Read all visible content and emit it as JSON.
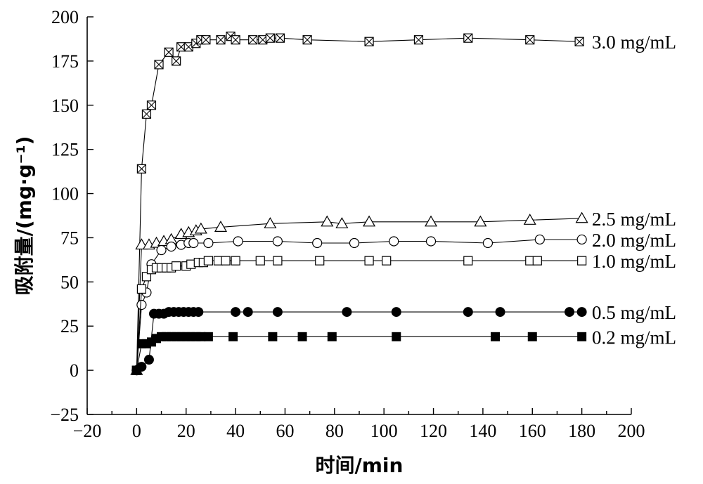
{
  "chart_data": {
    "type": "line",
    "xlabel": "时间/min",
    "ylabel": "吸附量/(mg·g⁻¹)",
    "xlim": [
      -20,
      200
    ],
    "ylim": [
      -25,
      200
    ],
    "xticks": [
      -20,
      0,
      20,
      40,
      60,
      80,
      100,
      120,
      140,
      160,
      180,
      200
    ],
    "xtick_labels": [
      "−20",
      "0",
      "20",
      "40",
      "60",
      "80",
      "100",
      "120",
      "140",
      "160",
      "180",
      "200"
    ],
    "yticks": [
      -25,
      0,
      25,
      50,
      75,
      100,
      125,
      150,
      175,
      200
    ],
    "ytick_labels": [
      "−25",
      "0",
      "25",
      "50",
      "75",
      "100",
      "125",
      "150",
      "175",
      "200"
    ],
    "grid": false,
    "legend": "labels at right end of each series",
    "series": [
      {
        "name": "3.0 mg/mL",
        "marker": "boxed-x",
        "x": [
          0,
          2,
          4,
          6,
          9,
          13,
          16,
          18,
          21,
          24,
          26,
          28,
          34,
          38,
          40,
          47,
          51,
          54,
          58,
          69,
          94,
          114,
          134,
          159,
          179
        ],
        "y": [
          0,
          114,
          145,
          150,
          173,
          180,
          175,
          183,
          183,
          185,
          187,
          187,
          187,
          189,
          187,
          187,
          187,
          188,
          188,
          187,
          186,
          187,
          188,
          187,
          186
        ]
      },
      {
        "name": "2.5 mg/mL",
        "marker": "open-triangle",
        "x": [
          0,
          2,
          5,
          8,
          11,
          14,
          18,
          21,
          24,
          26,
          34,
          54,
          77,
          83,
          94,
          119,
          139,
          159,
          180
        ],
        "y": [
          0,
          71,
          71,
          72,
          73,
          74,
          77,
          78,
          79,
          80,
          81,
          83,
          84,
          83,
          84,
          84,
          84,
          85,
          86
        ]
      },
      {
        "name": "2.0 mg/mL",
        "marker": "open-circle",
        "x": [
          0,
          2,
          4,
          6,
          10,
          14,
          18,
          21,
          23,
          29,
          41,
          57,
          73,
          88,
          104,
          119,
          142,
          163,
          180
        ],
        "y": [
          0,
          37,
          44,
          60,
          68,
          70,
          71,
          72,
          72,
          72,
          73,
          73,
          72,
          72,
          73,
          73,
          72,
          74,
          74
        ]
      },
      {
        "name": "1.0 mg/mL",
        "marker": "open-square",
        "x": [
          0,
          2,
          4,
          6,
          8,
          10,
          12,
          14,
          16,
          20,
          22,
          25,
          27,
          29,
          33,
          36,
          40,
          50,
          57,
          74,
          94,
          101,
          134,
          159,
          162,
          180
        ],
        "y": [
          0,
          46,
          53,
          57,
          58,
          58,
          58,
          58,
          59,
          59,
          60,
          61,
          61,
          62,
          62,
          62,
          62,
          62,
          62,
          62,
          62,
          62,
          62,
          62,
          62,
          62
        ]
      },
      {
        "name": "0.5 mg/mL",
        "marker": "filled-circle",
        "x": [
          0,
          2,
          5,
          7,
          9,
          11,
          13,
          15,
          17,
          19,
          21,
          23,
          25,
          40,
          45,
          57,
          85,
          105,
          134,
          147,
          175,
          180
        ],
        "y": [
          0,
          2,
          6,
          32,
          32,
          32,
          33,
          33,
          33,
          33,
          33,
          33,
          33,
          33,
          33,
          33,
          33,
          33,
          33,
          33,
          33,
          33
        ]
      },
      {
        "name": "0.2 mg/mL",
        "marker": "filled-square",
        "x": [
          0,
          2,
          4,
          6,
          8,
          10,
          12,
          14,
          16,
          18,
          20,
          22,
          24,
          26,
          29,
          39,
          55,
          67,
          79,
          105,
          145,
          160,
          180
        ],
        "y": [
          0,
          15,
          15,
          16,
          18,
          19,
          19,
          19,
          19,
          19,
          19,
          19,
          19,
          19,
          19,
          19,
          19,
          19,
          19,
          19,
          19,
          19,
          19
        ]
      }
    ]
  }
}
